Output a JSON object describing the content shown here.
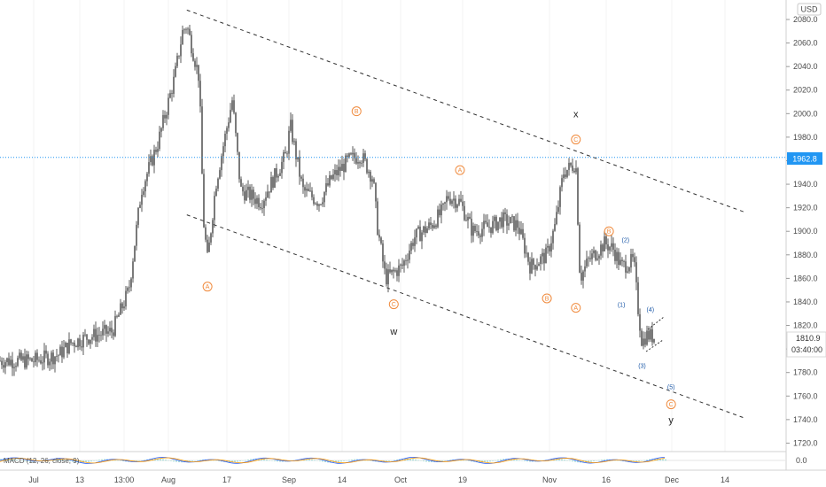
{
  "currency": "USD",
  "price_labels": {
    "horizontal_line": "1962.8",
    "current": "1810.9",
    "countdown": "03:40:00"
  },
  "macd_label": "MACD (12, 26, close, 9)",
  "macd_axis_label": "0.0",
  "colors": {
    "candle": "#5a5a5a",
    "wave_orange": "#f08a3c",
    "wave_blue": "#1e5aa8",
    "hline": "#2196f3",
    "trendline": "#333333",
    "macd": "#2962ff",
    "signal": "#ff9800"
  },
  "chart_data": {
    "type": "line",
    "title": "",
    "x_ticks": [
      "Jul",
      "13",
      "13:00",
      "Aug",
      "17",
      "Sep",
      "14",
      "Oct",
      "19",
      "Nov",
      "16",
      "Dec",
      "14"
    ],
    "y_ticks": [
      2080.0,
      2060.0,
      2040.0,
      2020.0,
      2000.0,
      1980.0,
      1960.0,
      1940.0,
      1920.0,
      1900.0,
      1880.0,
      1860.0,
      1840.0,
      1820.0,
      1800.0,
      1780.0,
      1760.0,
      1740.0,
      1720.0
    ],
    "ylim": [
      1713,
      2093
    ],
    "price_path": [
      {
        "x": "Jul 01",
        "y": 1790
      },
      {
        "x": "Jul 07",
        "y": 1795
      },
      {
        "x": "Jul 10",
        "y": 1805
      },
      {
        "x": "Jul 14",
        "y": 1810
      },
      {
        "x": "Jul 20",
        "y": 1815
      },
      {
        "x": "Jul 24",
        "y": 1850
      },
      {
        "x": "Jul 27",
        "y": 1935
      },
      {
        "x": "Jul 31",
        "y": 1975
      },
      {
        "x": "Aug 04",
        "y": 2030
      },
      {
        "x": "Aug 06",
        "y": 2070
      },
      {
        "x": "Aug 07",
        "y": 2075
      },
      {
        "x": "Aug 10",
        "y": 2030
      },
      {
        "x": "Aug 11",
        "y": 1910
      },
      {
        "x": "Aug 12",
        "y": 1875
      },
      {
        "x": "Aug 14",
        "y": 1940
      },
      {
        "x": "Aug 18",
        "y": 2012
      },
      {
        "x": "Aug 20",
        "y": 1935
      },
      {
        "x": "Aug 25",
        "y": 1925
      },
      {
        "x": "Aug 31",
        "y": 1965
      },
      {
        "x": "Sep 01",
        "y": 1990
      },
      {
        "x": "Sep 04",
        "y": 1935
      },
      {
        "x": "Sep 08",
        "y": 1925
      },
      {
        "x": "Sep 11",
        "y": 1945
      },
      {
        "x": "Sep 15",
        "y": 1960
      },
      {
        "x": "Sep 18",
        "y": 1965
      },
      {
        "x": "Sep 21",
        "y": 1945
      },
      {
        "x": "Sep 22",
        "y": 1905
      },
      {
        "x": "Sep 24",
        "y": 1860
      },
      {
        "x": "Sep 28",
        "y": 1870
      },
      {
        "x": "Oct 01",
        "y": 1895
      },
      {
        "x": "Oct 05",
        "y": 1905
      },
      {
        "x": "Oct 08",
        "y": 1918
      },
      {
        "x": "Oct 09",
        "y": 1930
      },
      {
        "x": "Oct 12",
        "y": 1925
      },
      {
        "x": "Oct 15",
        "y": 1900
      },
      {
        "x": "Oct 20",
        "y": 1905
      },
      {
        "x": "Oct 22",
        "y": 1910
      },
      {
        "x": "Oct 26",
        "y": 1905
      },
      {
        "x": "Oct 29",
        "y": 1870
      },
      {
        "x": "Nov 02",
        "y": 1880
      },
      {
        "x": "Nov 04",
        "y": 1905
      },
      {
        "x": "Nov 06",
        "y": 1950
      },
      {
        "x": "Nov 09",
        "y": 1958
      },
      {
        "x": "Nov 10",
        "y": 1860
      },
      {
        "x": "Nov 12",
        "y": 1875
      },
      {
        "x": "Nov 16",
        "y": 1890
      },
      {
        "x": "Nov 18",
        "y": 1885
      },
      {
        "x": "Nov 20",
        "y": 1870
      },
      {
        "x": "Nov 23",
        "y": 1875
      },
      {
        "x": "Nov 24",
        "y": 1835
      },
      {
        "x": "Nov 25",
        "y": 1805
      },
      {
        "x": "Nov 26",
        "y": 1812
      },
      {
        "x": "Nov 28",
        "y": 1810
      }
    ],
    "horizontal_line": 1962.8,
    "last_price": 1810.9,
    "channel": {
      "upper": [
        {
          "x": "Aug 07",
          "y": 2088
        },
        {
          "x": "Dec 20",
          "y": 1916
        }
      ],
      "lower": [
        {
          "x": "Aug 07",
          "y": 1914
        },
        {
          "x": "Dec 20",
          "y": 1741
        }
      ]
    },
    "wave_labels": [
      {
        "text": "A",
        "style": "circle",
        "x": "Aug 12",
        "y": 1853
      },
      {
        "text": "B",
        "style": "circle",
        "x": "Sep 17",
        "y": 2002
      },
      {
        "text": "C",
        "style": "circle",
        "x": "Sep 26",
        "y": 1838
      },
      {
        "text": "W",
        "style": "plain",
        "x": "Sep 26",
        "y": 1815
      },
      {
        "text": "A",
        "style": "circle",
        "x": "Oct 12",
        "y": 1952
      },
      {
        "text": "B",
        "style": "circle",
        "x": "Nov 02",
        "y": 1843
      },
      {
        "text": "C",
        "style": "circle",
        "x": "Nov 09",
        "y": 1978
      },
      {
        "text": "X",
        "style": "plain",
        "x": "Nov 09",
        "y": 2000
      },
      {
        "text": "A",
        "style": "circle",
        "x": "Nov 09",
        "y": 1835
      },
      {
        "text": "B",
        "style": "circle",
        "x": "Nov 17",
        "y": 1900
      },
      {
        "text": "(1)",
        "style": "blue",
        "x": "Nov 20",
        "y": 1838
      },
      {
        "text": "(2)",
        "style": "blue",
        "x": "Nov 21",
        "y": 1893
      },
      {
        "text": "(3)",
        "style": "blue",
        "x": "Nov 25",
        "y": 1786
      },
      {
        "text": "(4)",
        "style": "blue",
        "x": "Nov 27",
        "y": 1834
      },
      {
        "text": "(5)",
        "style": "blue",
        "x": "Dec 02",
        "y": 1768
      },
      {
        "text": "C",
        "style": "circle",
        "x": "Dec 02",
        "y": 1753
      },
      {
        "text": "Y",
        "style": "plain",
        "x": "Dec 02",
        "y": 1740
      }
    ]
  }
}
